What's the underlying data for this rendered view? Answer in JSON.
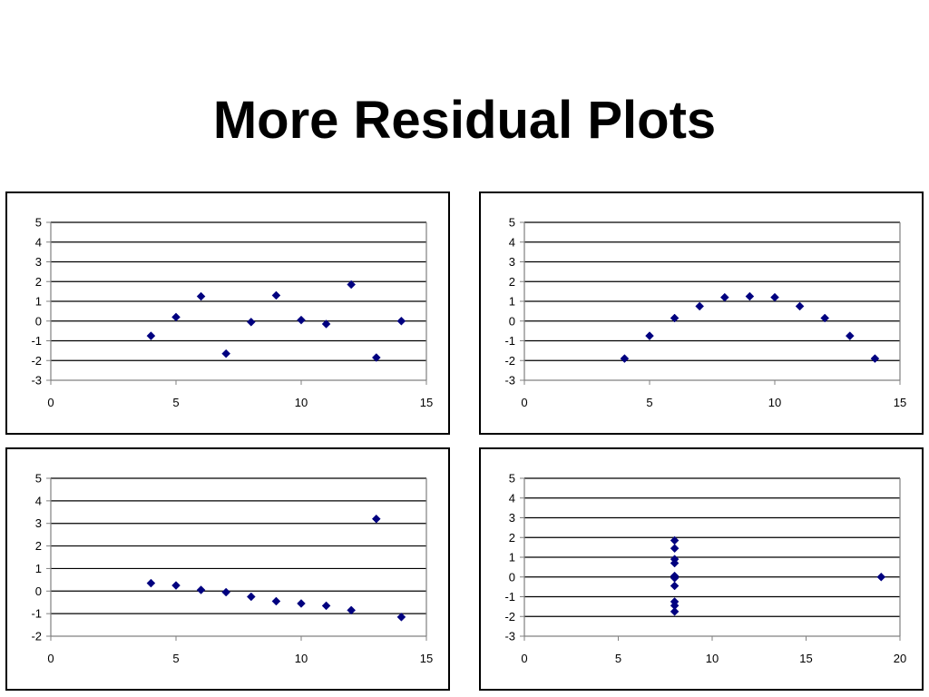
{
  "slide": {
    "title": "More Residual Plots"
  },
  "colors": {
    "marker": "#000080",
    "gridline": "#000000",
    "axis": "#808080"
  },
  "chart_data": [
    {
      "type": "scatter",
      "title": "",
      "xlabel": "",
      "ylabel": "",
      "xlim": [
        0,
        15
      ],
      "ylim": [
        -3,
        5
      ],
      "xticks": [
        0,
        5,
        10,
        15
      ],
      "yticks": [
        -3,
        -2,
        -1,
        0,
        1,
        2,
        3,
        4,
        5
      ],
      "grid": true,
      "marker": "diamond",
      "x": [
        4,
        5,
        6,
        7,
        8,
        9,
        10,
        11,
        12,
        13,
        14
      ],
      "y": [
        -0.75,
        0.2,
        1.25,
        -1.65,
        -0.05,
        1.3,
        0.05,
        -0.15,
        1.85,
        -1.85,
        0.0
      ]
    },
    {
      "type": "scatter",
      "title": "",
      "xlabel": "",
      "ylabel": "",
      "xlim": [
        0,
        15
      ],
      "ylim": [
        -3,
        5
      ],
      "xticks": [
        0,
        5,
        10,
        15
      ],
      "yticks": [
        -3,
        -2,
        -1,
        0,
        1,
        2,
        3,
        4,
        5
      ],
      "grid": true,
      "marker": "diamond",
      "x": [
        4,
        5,
        6,
        7,
        8,
        9,
        10,
        11,
        12,
        13,
        14
      ],
      "y": [
        -1.9,
        -0.75,
        0.15,
        0.75,
        1.2,
        1.25,
        1.2,
        0.75,
        0.15,
        -0.75,
        -1.9
      ]
    },
    {
      "type": "scatter",
      "title": "",
      "xlabel": "",
      "ylabel": "",
      "xlim": [
        0,
        15
      ],
      "ylim": [
        -2,
        5
      ],
      "xticks": [
        0,
        5,
        10,
        15
      ],
      "yticks": [
        -2,
        -1,
        0,
        1,
        2,
        3,
        4,
        5
      ],
      "grid": true,
      "marker": "diamond",
      "x": [
        4,
        5,
        6,
        7,
        8,
        9,
        10,
        11,
        12,
        13,
        14
      ],
      "y": [
        0.35,
        0.25,
        0.05,
        -0.05,
        -0.25,
        -0.45,
        -0.55,
        -0.65,
        -0.85,
        3.2,
        -1.15
      ]
    },
    {
      "type": "scatter",
      "title": "",
      "xlabel": "",
      "ylabel": "",
      "xlim": [
        0,
        20
      ],
      "ylim": [
        -3,
        5
      ],
      "xticks": [
        0,
        5,
        10,
        15,
        20
      ],
      "yticks": [
        -3,
        -2,
        -1,
        0,
        1,
        2,
        3,
        4,
        5
      ],
      "grid": true,
      "marker": "diamond",
      "x": [
        8,
        8,
        8,
        8,
        8,
        8,
        8,
        8,
        8,
        8,
        19
      ],
      "y": [
        1.85,
        1.45,
        0.9,
        0.7,
        0.05,
        -0.05,
        -0.45,
        -1.25,
        -1.45,
        -1.75,
        0.0
      ]
    }
  ]
}
